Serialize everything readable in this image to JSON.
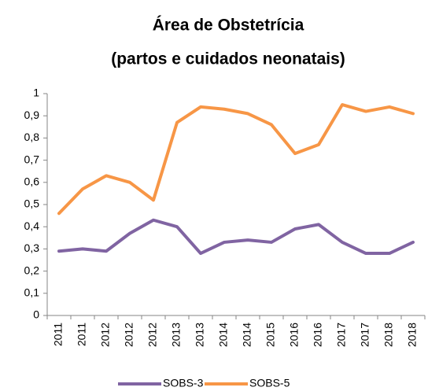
{
  "chart_data": {
    "type": "line",
    "title": "Área de Obstetrícia",
    "subtitle": "(partos e cuidados neonatais)",
    "categories": [
      "2011",
      "2011",
      "2012",
      "2012",
      "2012",
      "2013",
      "2013",
      "2014",
      "2014",
      "2015",
      "2016",
      "2016",
      "2017",
      "2017",
      "2018",
      "2018"
    ],
    "series": [
      {
        "name": "SOBS-3",
        "color": "#8064a2",
        "values": [
          0.29,
          0.3,
          0.29,
          0.37,
          0.43,
          0.4,
          0.28,
          0.33,
          0.34,
          0.33,
          0.39,
          0.41,
          0.33,
          0.28,
          0.28,
          0.33
        ]
      },
      {
        "name": "SOBS-5",
        "color": "#f79646",
        "values": [
          0.46,
          0.57,
          0.63,
          0.6,
          0.52,
          0.87,
          0.94,
          0.93,
          0.91,
          0.86,
          0.73,
          0.77,
          0.95,
          0.92,
          0.94,
          0.91
        ]
      }
    ],
    "ylim": [
      0,
      1
    ],
    "yticks": [
      0,
      {
        "value": 0.1,
        "label": "0,1"
      },
      {
        "value": 0.2,
        "label": "0,2"
      },
      {
        "value": 0.3,
        "label": "0,3"
      },
      {
        "value": 0.4,
        "label": "0,4"
      },
      {
        "value": 0.5,
        "label": "0,5"
      },
      {
        "value": 0.6,
        "label": "0,6"
      },
      {
        "value": 0.7,
        "label": "0,7"
      },
      {
        "value": 0.8,
        "label": "0,8"
      },
      {
        "value": 0.9,
        "label": "0,9"
      },
      1
    ],
    "grid": false,
    "legend": "bottom"
  }
}
